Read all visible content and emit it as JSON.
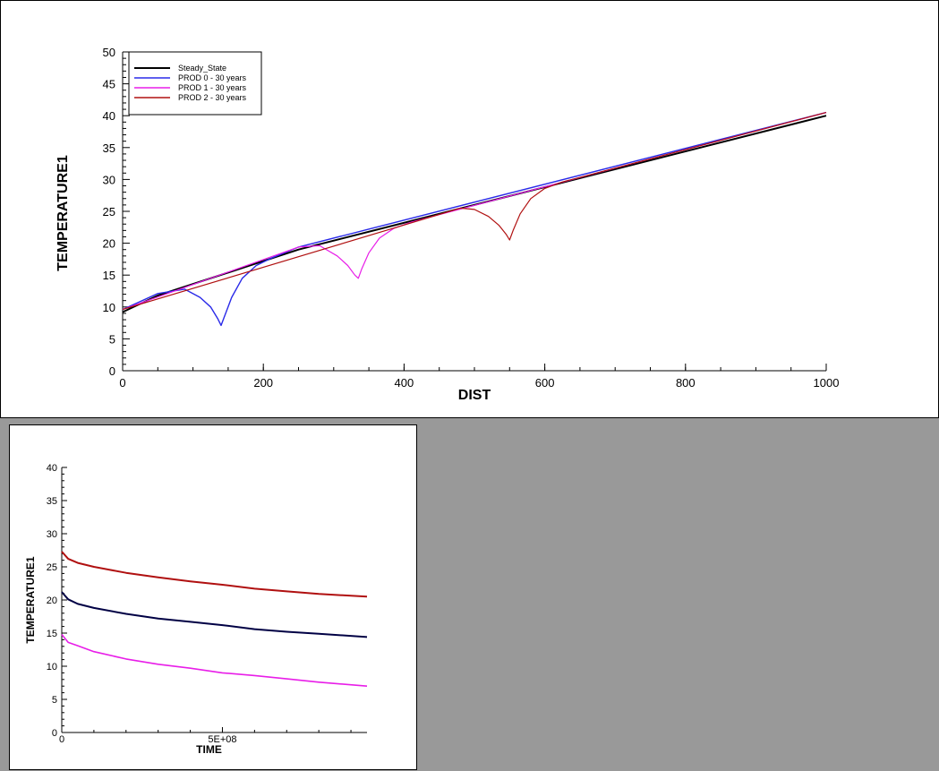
{
  "chart_data": [
    {
      "type": "line",
      "xlabel": "DIST",
      "ylabel": "TEMPERATURE1",
      "xlim": [
        0,
        1000
      ],
      "ylim": [
        0,
        50
      ],
      "xticks": [
        0,
        200,
        400,
        600,
        800,
        1000
      ],
      "yticks": [
        0,
        5,
        10,
        15,
        20,
        25,
        30,
        35,
        40,
        45,
        50
      ],
      "grid": false,
      "legend_position": "top-left",
      "series": [
        {
          "name": "Steady_State",
          "color": "#000000",
          "x": [
            0,
            50,
            250,
            1000
          ],
          "y": [
            9.2,
            11.8,
            19,
            40
          ]
        },
        {
          "name": "PROD 0 - 30 years",
          "color": "#2a2ae8",
          "x": [
            0,
            50,
            88,
            110,
            125,
            135,
            140,
            145,
            155,
            170,
            190,
            210,
            250,
            1000
          ],
          "y": [
            9.6,
            12.1,
            12.8,
            11.5,
            10,
            8.2,
            7.1,
            8.6,
            11.5,
            14.5,
            16.5,
            17.6,
            19.4,
            40.5
          ]
        },
        {
          "name": "PROD 1 - 30 years",
          "color": "#e81ee8",
          "x": [
            0,
            250,
            280,
            305,
            320,
            330,
            335,
            340,
            350,
            365,
            385,
            410,
            430,
            1000
          ],
          "y": [
            9.6,
            19.4,
            19.6,
            18,
            16.5,
            15,
            14.5,
            16,
            18.5,
            20.8,
            22.3,
            23.3,
            23.9,
            40.5
          ]
        },
        {
          "name": "PROD 2 - 30 years",
          "color": "#b01010",
          "x": [
            0,
            480,
            500,
            520,
            535,
            545,
            550,
            555,
            565,
            580,
            600,
            625,
            1000
          ],
          "y": [
            9.6,
            25.5,
            25.3,
            24.2,
            22.8,
            21.4,
            20.5,
            22,
            24.6,
            27,
            28.6,
            29.6,
            40.5
          ]
        }
      ]
    },
    {
      "type": "line",
      "xlabel": "TIME",
      "ylabel": "TEMPERATURE1",
      "ylim": [
        0,
        40
      ],
      "xlim": [
        0,
        950000000
      ],
      "xticks": [
        0,
        500000000
      ],
      "xtick_labels": [
        "0",
        "5E+08"
      ],
      "yticks": [
        0,
        5,
        10,
        15,
        20,
        25,
        30,
        35,
        40
      ],
      "grid": false,
      "series": [
        {
          "color": "#b01010",
          "x": [
            0,
            20000000,
            50000000,
            100000000,
            200000000,
            300000000,
            400000000,
            500000000,
            600000000,
            700000000,
            800000000,
            950000000
          ],
          "y": [
            27.3,
            26.2,
            25.6,
            25,
            24.1,
            23.4,
            22.8,
            22.3,
            21.7,
            21.3,
            20.9,
            20.5
          ]
        },
        {
          "color": "#000044",
          "x": [
            0,
            20000000,
            50000000,
            100000000,
            200000000,
            300000000,
            400000000,
            500000000,
            600000000,
            700000000,
            800000000,
            950000000
          ],
          "y": [
            21.2,
            20.1,
            19.4,
            18.8,
            17.9,
            17.2,
            16.7,
            16.2,
            15.6,
            15.2,
            14.9,
            14.4
          ]
        },
        {
          "color": "#e81ee8",
          "x": [
            0,
            20000000,
            50000000,
            100000000,
            200000000,
            300000000,
            400000000,
            500000000,
            600000000,
            700000000,
            800000000,
            950000000
          ],
          "y": [
            14.8,
            13.6,
            13.1,
            12.2,
            11.1,
            10.3,
            9.7,
            9,
            8.6,
            8.1,
            7.6,
            7
          ]
        }
      ]
    }
  ]
}
